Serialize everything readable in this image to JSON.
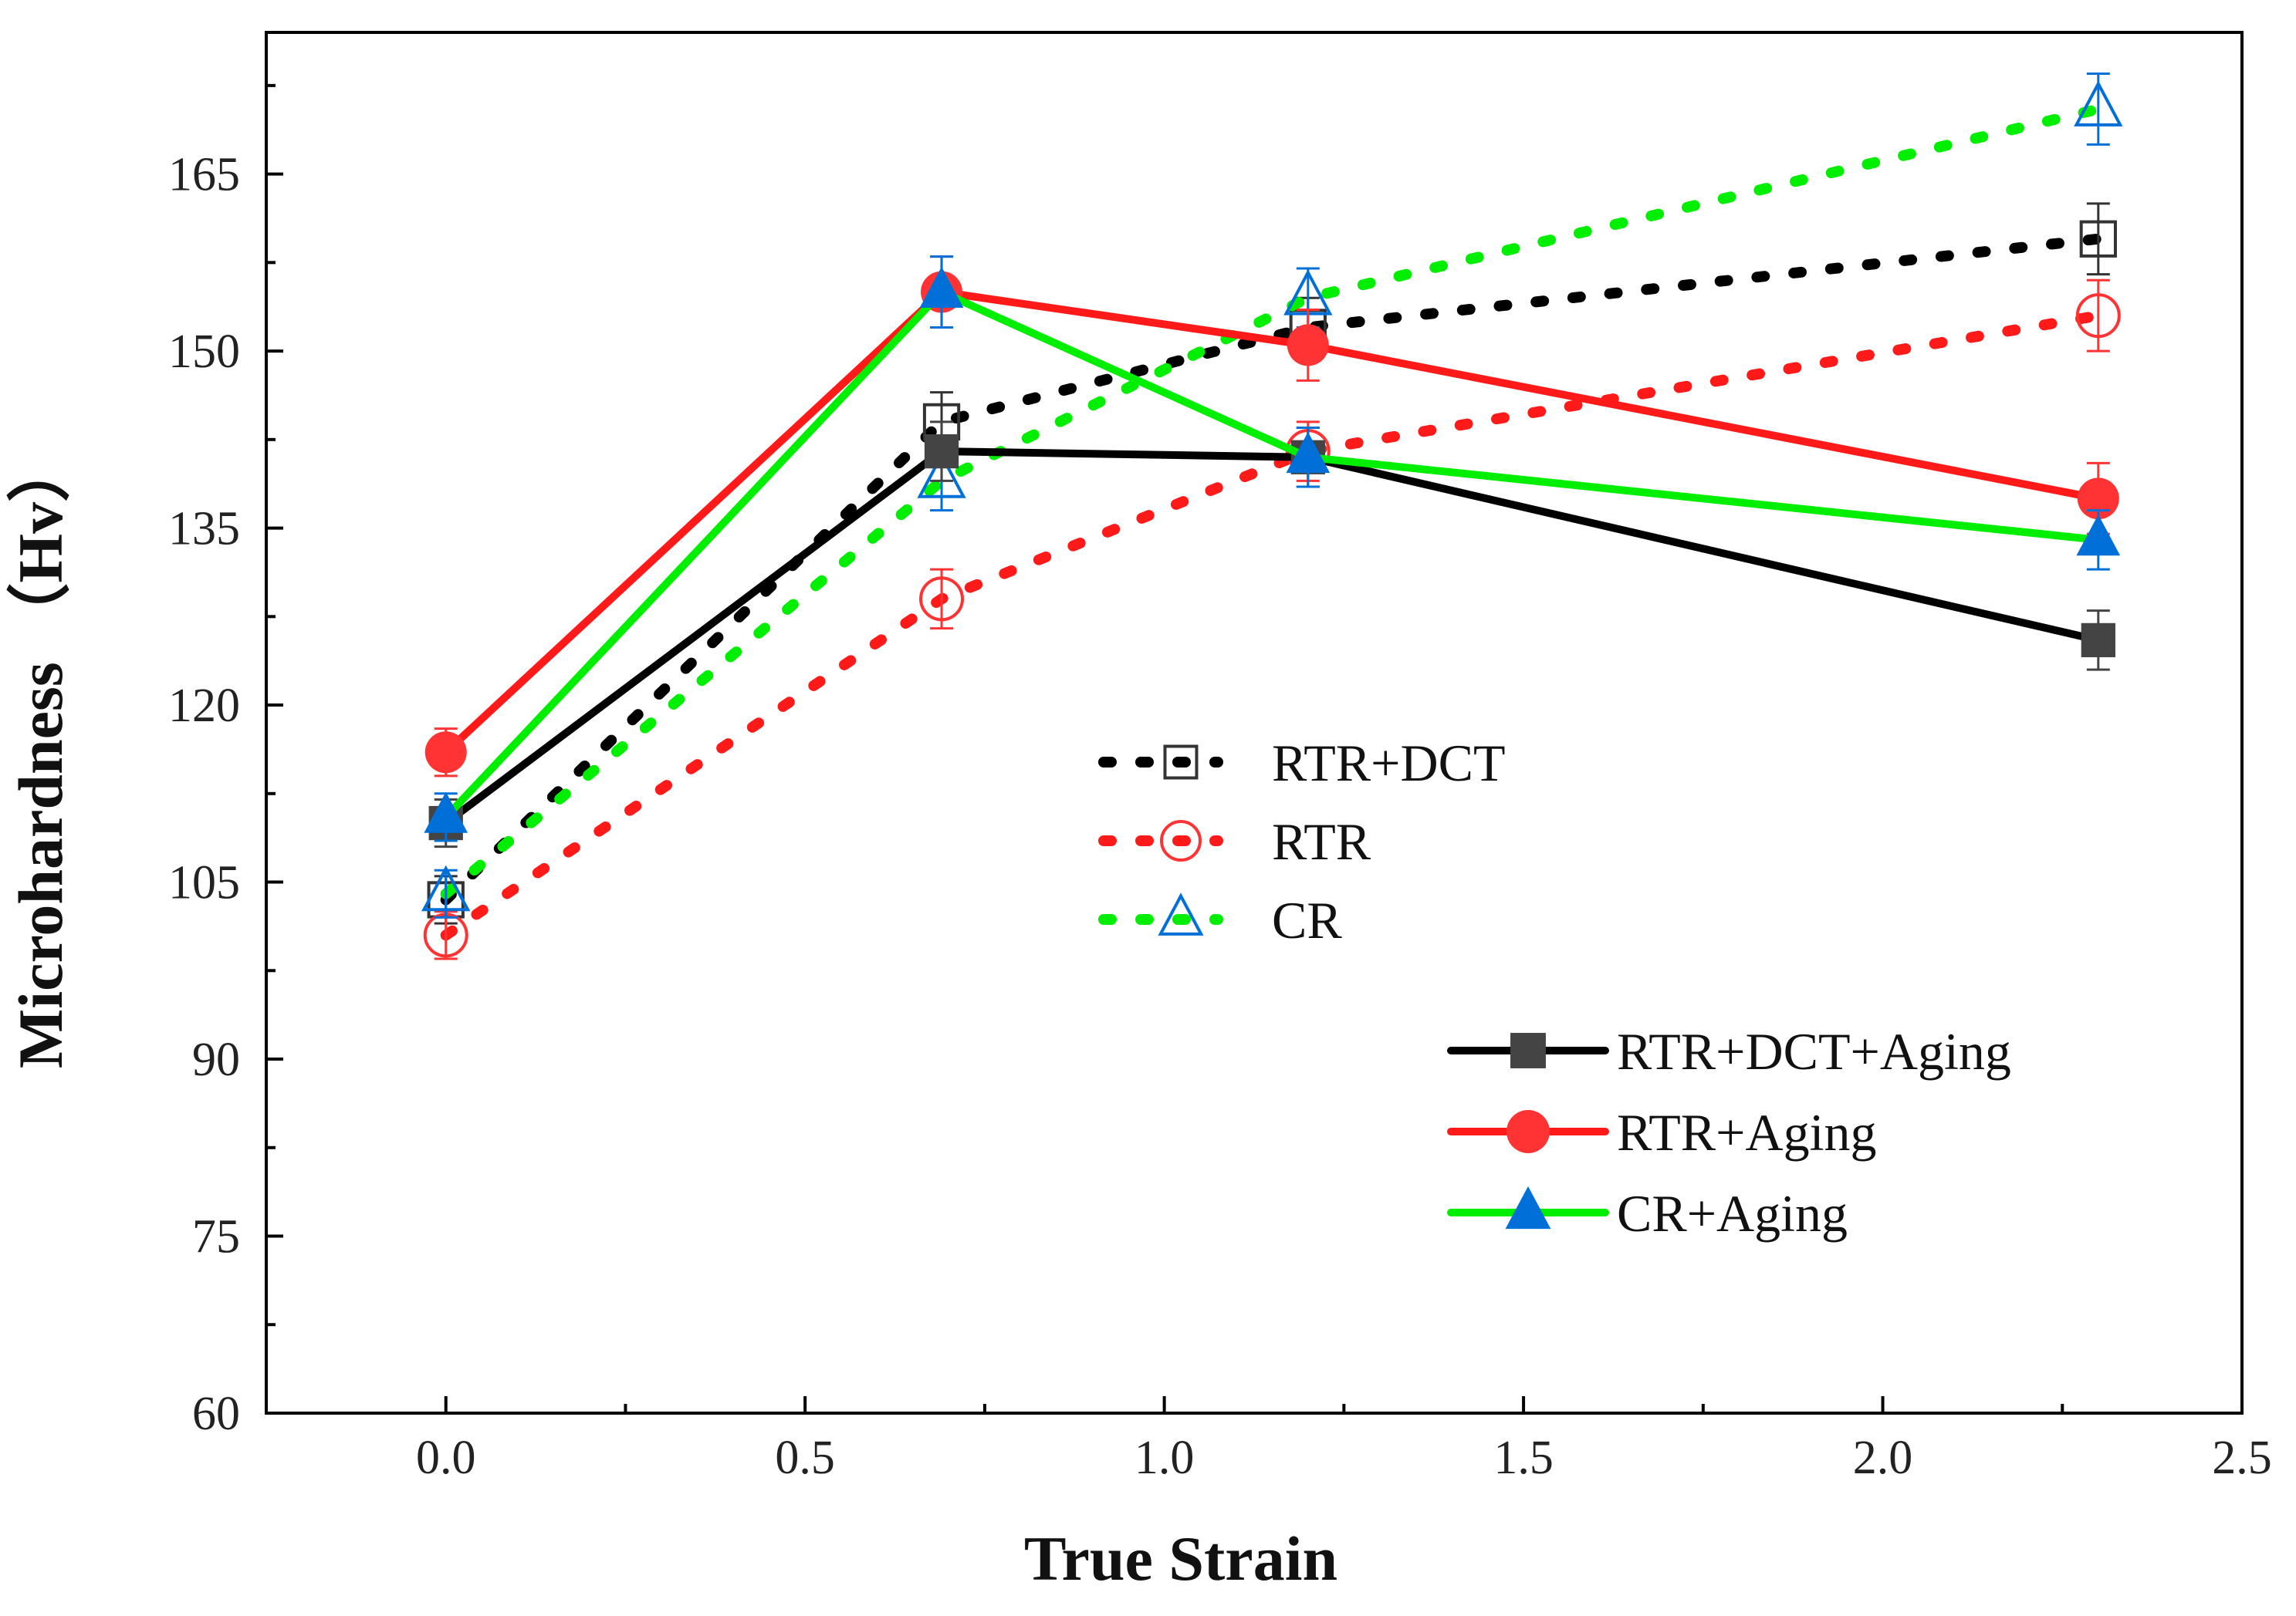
{
  "chart_data": {
    "type": "line",
    "title": "",
    "xlabel": "True Strain",
    "ylabel": "Microhardness （Hv）",
    "xlim": [
      -0.25,
      2.5
    ],
    "ylim": [
      60,
      177
    ],
    "xticks": [
      0.0,
      0.5,
      1.0,
      1.5,
      2.0,
      2.5
    ],
    "xtick_labels": [
      "0.0",
      "0.5",
      "1.0",
      "1.5",
      "2.0",
      "2.5"
    ],
    "yticks": [
      60,
      75,
      90,
      105,
      120,
      135,
      150,
      165
    ],
    "ytick_labels": [
      "60",
      "75",
      "90",
      "105",
      "120",
      "135",
      "150",
      "165"
    ],
    "grid": false,
    "x": [
      0.0,
      0.69,
      1.2,
      2.3
    ],
    "series": [
      {
        "name": "RTR+DCT",
        "style": "dotted",
        "marker": "open-square",
        "line_color": "#000000",
        "marker_color": "#333333",
        "values": [
          103.5,
          144.0,
          152.0,
          159.5
        ],
        "errors": [
          2.0,
          2.5,
          2.5,
          3.0
        ]
      },
      {
        "name": "RTR",
        "style": "dotted",
        "marker": "open-circle",
        "line_color": "#ff1a1a",
        "marker_color": "#ff3333",
        "values": [
          100.5,
          129.0,
          141.5,
          153.0
        ],
        "errors": [
          2.0,
          2.5,
          2.5,
          3.0
        ]
      },
      {
        "name": "CR",
        "style": "dotted",
        "marker": "open-triangle",
        "line_color": "#00ee00",
        "marker_color": "#0070d8",
        "values": [
          104.0,
          139.0,
          154.5,
          170.5
        ],
        "errors": [
          2.0,
          2.5,
          2.5,
          3.0
        ]
      },
      {
        "name": "RTR+DCT+Aging",
        "style": "solid",
        "marker": "filled-square",
        "line_color": "#000000",
        "marker_color": "#444444",
        "values": [
          110.0,
          141.5,
          141.0,
          125.5
        ],
        "errors": [
          2.0,
          2.5,
          2.5,
          2.5
        ]
      },
      {
        "name": "RTR+Aging",
        "style": "solid",
        "marker": "filled-circle",
        "line_color": "#ff1a1a",
        "marker_color": "#ff3333",
        "values": [
          116.0,
          155.0,
          150.5,
          137.5
        ],
        "errors": [
          2.0,
          3.0,
          3.0,
          3.0
        ]
      },
      {
        "name": "CR+Aging",
        "style": "solid",
        "marker": "filled-triangle",
        "line_color": "#00ee00",
        "marker_color": "#0070d8",
        "values": [
          110.5,
          155.0,
          141.0,
          134.0
        ],
        "errors": [
          2.0,
          3.0,
          2.5,
          2.5
        ]
      }
    ],
    "legends": [
      {
        "placement": "center",
        "entries": [
          "RTR+DCT",
          "RTR",
          "CR"
        ]
      },
      {
        "placement": "bottom-right",
        "entries": [
          "RTR+DCT+Aging",
          "RTR+Aging",
          "CR+Aging"
        ]
      }
    ]
  }
}
